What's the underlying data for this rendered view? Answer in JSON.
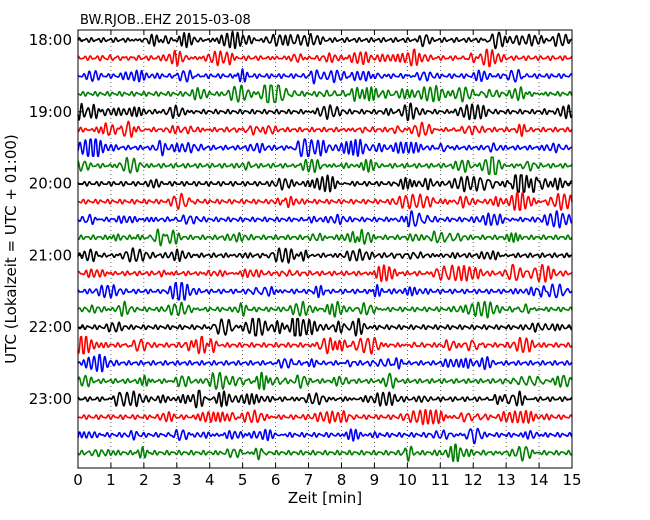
{
  "chart_data": {
    "type": "line",
    "title": "BW.RJOB..EHZ 2015-03-08",
    "xlabel": "Zeit  [min]",
    "ylabel": "UTC (Lokalzeit = UTC + 01:00)",
    "xlim": [
      0,
      15
    ],
    "x_ticks": [
      "0",
      "1",
      "2",
      "3",
      "4",
      "5",
      "6",
      "7",
      "8",
      "9",
      "10",
      "11",
      "12",
      "13",
      "14",
      "15"
    ],
    "y_ticks": [
      "18:00",
      "19:00",
      "20:00",
      "21:00",
      "22:00",
      "23:00"
    ],
    "grid": "vertical dotted",
    "row_minutes": 15,
    "row_count": 24,
    "row_colors": [
      "#000000",
      "#ff0000",
      "#0000ff",
      "#008000"
    ]
  }
}
